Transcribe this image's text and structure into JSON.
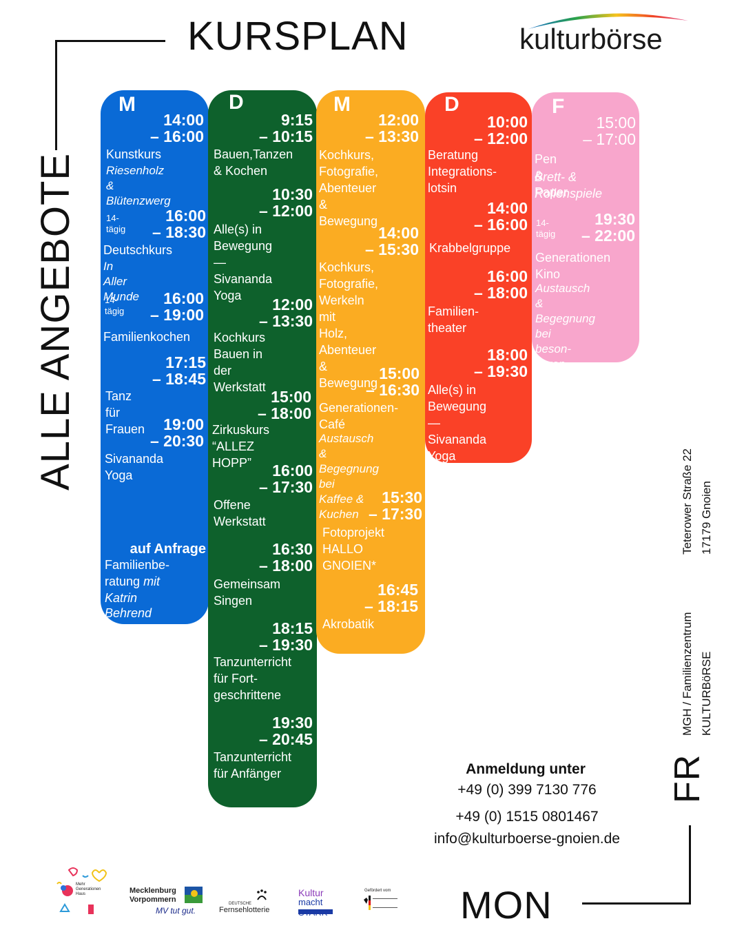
{
  "header": {
    "title": "KURSPLAN",
    "side_title": "ALLE ANGEBOTE"
  },
  "brand": {
    "name": "kulturbörse"
  },
  "colors": {
    "monday": "#0a6ad6",
    "tuesday": "#0e612c",
    "wednesday": "#fbac22",
    "thursday": "#fa4127",
    "friday": "#f8a6cc"
  },
  "days": [
    {
      "letter": "M",
      "events": [
        {
          "time": "14:00\n– 16:00",
          "desc": "Kunstkurs",
          "sub": "Riesenholz &\nBlütenzwerg"
        },
        {
          "note": "14-tägig",
          "time": "16:00\n– 18:30",
          "desc": "Deutschkurs",
          "sub": "In Aller Munde"
        },
        {
          "note": "14-tägig",
          "time": "16:00\n– 19:00",
          "desc": "Familienkochen"
        },
        {
          "time": "17:15\n– 18:45",
          "desc": "Tanz für Frauen"
        },
        {
          "time": "19:00\n– 20:30",
          "desc": "Sivananda\nYoga"
        },
        {
          "time": "auf Anfrage",
          "desc": "Familienbe-\nratung",
          "desc_it": "mit",
          "sub": "Katrin Behrend"
        }
      ]
    },
    {
      "letter": "D",
      "events": [
        {
          "time": "9:15\n– 10:15",
          "desc": "Bauen,Tanzen\n& Kochen"
        },
        {
          "time": "10:30\n– 12:00",
          "desc": "Alle(s) in\nBewegung —\nSivananda\nYoga"
        },
        {
          "time": "12:00\n– 13:30",
          "desc": "Kochkurs\nBauen in der\nWerkstatt"
        },
        {
          "time": "15:00\n– 18:00",
          "desc": "Zirkuskurs\n“ALLEZ HOPP”"
        },
        {
          "time": "16:00\n– 17:30",
          "desc": "Offene\nWerkstatt"
        },
        {
          "time": "16:30\n– 18:00",
          "desc": "Gemeinsam\nSingen"
        },
        {
          "time": "18:15\n– 19:30",
          "desc": "Tanzunterricht\nfür Fort-\ngeschrittene"
        },
        {
          "time": "19:30\n– 20:45",
          "desc": "Tanzunterricht\nfür Anfänger"
        }
      ]
    },
    {
      "letter": "M",
      "events": [
        {
          "time": "12:00\n– 13:30",
          "desc": "Kochkurs,\nFotografie,\nAbenteuer &\nBewegung"
        },
        {
          "time": "14:00\n– 15:30",
          "desc": "Kochkurs,\nFotografie,\nWerkeln mit\nHolz,\nAbenteuer &\nBewegung"
        },
        {
          "time": "15:00\n– 16:30",
          "desc": "Generationen-\nCafé",
          "sub": "Austausch &\nBegegnung bei\nKaffee & Kuchen"
        },
        {
          "time": "15:30\n– 17:30",
          "desc": "Fotoprojekt\nHALLO\nGNOIEN*"
        },
        {
          "time": "16:45\n– 18:15",
          "desc": "Akrobatik"
        }
      ]
    },
    {
      "letter": "D",
      "events": [
        {
          "time": "10:00\n– 12:00",
          "desc": "Beratung\nIntegrations-\nlotsin"
        },
        {
          "time": "14:00\n– 16:00",
          "desc": "Krabbelgruppe"
        },
        {
          "time": "16:00\n– 18:00",
          "desc": "Familien-\ntheater"
        },
        {
          "time": "18:00\n– 19:30",
          "desc": "Alle(s) in\nBewegung —\nSivananda\nYoga"
        }
      ]
    },
    {
      "letter": "F",
      "events": [
        {
          "time": "15:00\n– 17:00",
          "desc": "Pen & Paper",
          "sub": "Brett- &\nRollenspiele"
        },
        {
          "note": "14-tägig",
          "time": "19:30\n– 22:00",
          "desc": "Generationen\nKino",
          "sub": "Austausch &\nBegegnung bei\nbeson-deren\nFilmen"
        }
      ]
    }
  ],
  "side": {
    "address": "Teterower Straße 22\n17179 Gnoien",
    "org": "MGH / Familienzentrum\nKULTURBöRSE",
    "range_end": "FR",
    "range_start": "MON"
  },
  "contact": {
    "heading": "Anmeldung unter",
    "phone1": "+49 (0) 399 7130 776",
    "phone2": "+49 (0) 1515 0801467",
    "email": "info@kulturboerse-gnoien.de"
  },
  "footer": {
    "logo1": "Mehr Generationen Haus",
    "logo2_a": "Mecklenburg",
    "logo2_b": "Vorpommern",
    "logo2_c": "MV tut gut.",
    "logo3_a": "DEUTSCHE",
    "logo3_b": "Fernsehlotterie",
    "logo4_a": "Kultur",
    "logo4_b": "macht STARK",
    "logo5": "Gefördert vom"
  }
}
